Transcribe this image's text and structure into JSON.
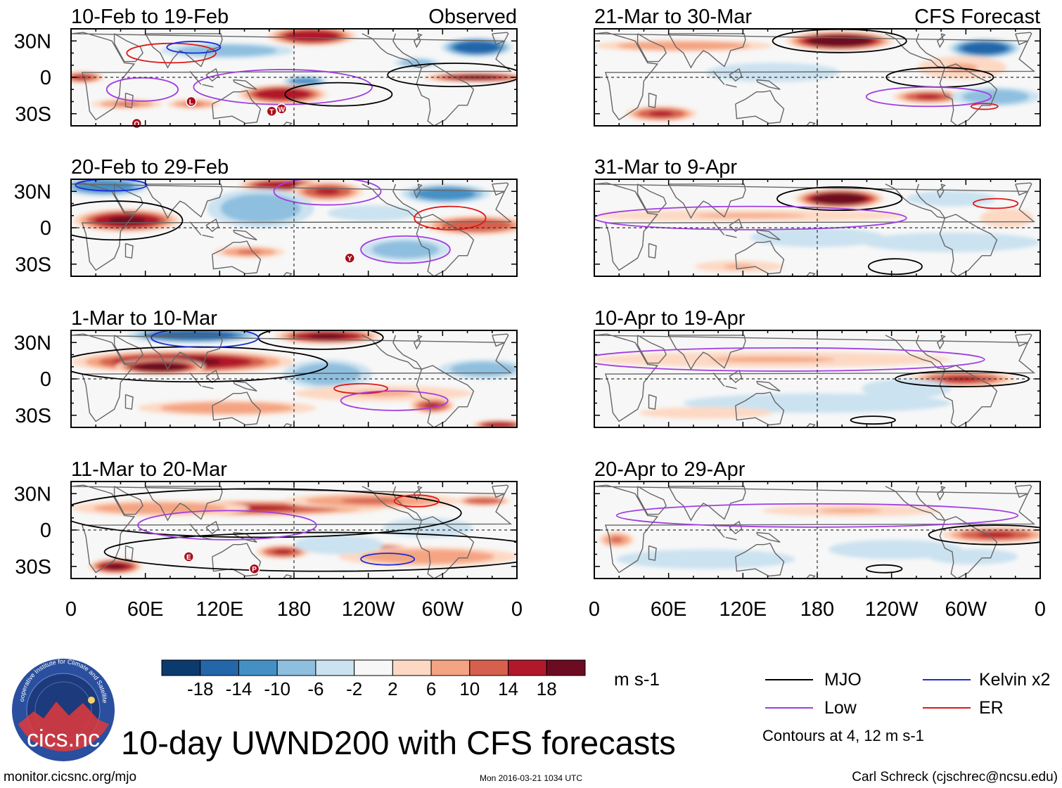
{
  "chart_data": {
    "type": "heatmap",
    "title": "10-day UWND200 with CFS forecasts",
    "units": "m s-1",
    "colors": {
      "levels": [
        -22,
        -18,
        -14,
        -10,
        -6,
        -2,
        2,
        6,
        10,
        14,
        18,
        22
      ],
      "fills": [
        "#0b3a6e",
        "#2466aa",
        "#4490c5",
        "#8ebfdf",
        "#cbe2f0",
        "#f7f7f7",
        "#fdd9c4",
        "#f4a482",
        "#d6604d",
        "#b2182b",
        "#6d0b22"
      ],
      "contours": {
        "mjo": "#000000",
        "low": "#a03ee0",
        "kelvin": "#1a2ed6",
        "er": "#e01818"
      },
      "land": "#666666"
    },
    "colorbar_ticks": [
      "-18",
      "-14",
      "-10",
      "-6",
      "-2",
      "2",
      "6",
      "10",
      "14",
      "18"
    ],
    "x_ticks": [
      "0",
      "60E",
      "120E",
      "180",
      "120W",
      "60W",
      "0"
    ],
    "y_ticks": [
      "30N",
      "0",
      "30S"
    ],
    "panels": [
      {
        "title": "10-Feb to 19-Feb",
        "label": "Observed",
        "column": "observed",
        "blobs": [
          [
            -0.95,
            0.0,
            0.05,
            0.06,
            15
          ],
          [
            0.82,
            0.0,
            0.12,
            0.05,
            18
          ],
          [
            -0.05,
            -0.35,
            0.1,
            0.1,
            16
          ],
          [
            0.08,
            0.85,
            0.1,
            0.1,
            16
          ],
          [
            0.82,
            0.62,
            0.08,
            0.1,
            -18
          ],
          [
            -0.3,
            0.55,
            0.15,
            0.08,
            -10
          ],
          [
            0.05,
            -0.08,
            0.05,
            0.05,
            -12
          ],
          [
            -0.75,
            -0.55,
            0.08,
            0.05,
            10
          ],
          [
            -0.45,
            -0.55,
            0.06,
            0.05,
            10
          ],
          [
            0.55,
            0.3,
            0.05,
            0.05,
            -10
          ]
        ],
        "contours": [
          {
            "kind": "mjo",
            "x": 0.72,
            "y": 0.05,
            "rx": 0.15,
            "ry": 0.12
          },
          {
            "kind": "low",
            "x": -0.05,
            "y": -0.2,
            "rx": 0.2,
            "ry": 0.18
          },
          {
            "kind": "mjo",
            "x": 0.2,
            "y": -0.35,
            "rx": 0.12,
            "ry": 0.12
          },
          {
            "kind": "er",
            "x": -0.55,
            "y": 0.5,
            "rx": 0.1,
            "ry": 0.1
          },
          {
            "kind": "kelvin",
            "x": -0.45,
            "y": 0.62,
            "rx": 0.06,
            "ry": 0.06
          },
          {
            "kind": "low",
            "x": -0.68,
            "y": -0.25,
            "rx": 0.08,
            "ry": 0.12
          }
        ],
        "markers": [
          {
            "x": 97,
            "y": -20,
            "letter": "L"
          },
          {
            "x": 53,
            "y": -38,
            "letter": "O"
          },
          {
            "x": 162,
            "y": -28,
            "letter": "T"
          },
          {
            "x": 170,
            "y": -26,
            "letter": "W"
          }
        ]
      },
      {
        "title": "20-Feb to 29-Feb",
        "label": "",
        "column": "observed",
        "blobs": [
          [
            -0.75,
            0.15,
            0.12,
            0.12,
            18
          ],
          [
            -0.05,
            0.88,
            0.1,
            0.07,
            16
          ],
          [
            0.15,
            0.75,
            0.08,
            0.1,
            14
          ],
          [
            0.82,
            0.05,
            0.12,
            0.1,
            12
          ],
          [
            0.5,
            -0.45,
            0.06,
            0.1,
            -18
          ],
          [
            0.5,
            -0.45,
            0.1,
            0.12,
            -10
          ],
          [
            -0.15,
            0.4,
            0.12,
            0.2,
            -10
          ],
          [
            0.68,
            0.7,
            0.1,
            0.1,
            -14
          ],
          [
            -0.85,
            0.85,
            0.1,
            0.1,
            -14
          ],
          [
            -0.2,
            -0.5,
            0.08,
            0.06,
            10
          ],
          [
            0.35,
            0.3,
            0.1,
            0.08,
            -6
          ]
        ],
        "contours": [
          {
            "kind": "mjo",
            "x": -0.8,
            "y": 0.15,
            "rx": 0.15,
            "ry": 0.2
          },
          {
            "kind": "low",
            "x": 0.5,
            "y": -0.45,
            "rx": 0.1,
            "ry": 0.14
          },
          {
            "kind": "er",
            "x": 0.7,
            "y": 0.2,
            "rx": 0.08,
            "ry": 0.12
          },
          {
            "kind": "kelvin",
            "x": -0.82,
            "y": 0.88,
            "rx": 0.08,
            "ry": 0.06
          },
          {
            "kind": "low",
            "x": 0.15,
            "y": 0.75,
            "rx": 0.12,
            "ry": 0.14
          }
        ],
        "markers": [
          {
            "x": -135,
            "y": -25,
            "letter": "Y"
          }
        ]
      },
      {
        "title": "1-Mar to 10-Mar",
        "label": "",
        "column": "observed",
        "blobs": [
          [
            -0.5,
            0.35,
            0.25,
            0.12,
            18
          ],
          [
            -0.6,
            0.25,
            0.1,
            0.08,
            22
          ],
          [
            0.15,
            0.88,
            0.12,
            0.08,
            18
          ],
          [
            0.15,
            0.1,
            0.1,
            0.15,
            -10
          ],
          [
            -0.45,
            0.9,
            0.15,
            0.08,
            -18
          ],
          [
            0.62,
            -0.55,
            0.05,
            0.08,
            14
          ],
          [
            0.92,
            -0.95,
            0.06,
            0.05,
            16
          ],
          [
            0.85,
            0.2,
            0.1,
            0.1,
            -8
          ],
          [
            -0.3,
            -0.6,
            0.2,
            0.08,
            8
          ],
          [
            0.4,
            -0.3,
            0.2,
            0.08,
            6
          ]
        ],
        "contours": [
          {
            "kind": "mjo",
            "x": -0.45,
            "y": 0.3,
            "rx": 0.3,
            "ry": 0.18
          },
          {
            "kind": "mjo",
            "x": 0.12,
            "y": 0.85,
            "rx": 0.14,
            "ry": 0.12
          },
          {
            "kind": "kelvin",
            "x": -0.4,
            "y": 0.85,
            "rx": 0.12,
            "ry": 0.1
          },
          {
            "kind": "er",
            "x": 0.3,
            "y": -0.2,
            "rx": 0.06,
            "ry": 0.05
          },
          {
            "kind": "low",
            "x": 0.45,
            "y": -0.45,
            "rx": 0.12,
            "ry": 0.1
          }
        ],
        "markers": []
      },
      {
        "title": "11-Mar to 20-Mar",
        "label": "",
        "column": "observed",
        "blobs": [
          [
            -0.2,
            0.45,
            0.3,
            0.08,
            14
          ],
          [
            0.35,
            0.6,
            0.2,
            0.08,
            10
          ],
          [
            -0.6,
            0.45,
            0.2,
            0.08,
            8
          ],
          [
            -0.8,
            -0.75,
            0.06,
            0.08,
            18
          ],
          [
            0.42,
            -0.45,
            0.06,
            0.08,
            16
          ],
          [
            -0.05,
            -0.45,
            0.06,
            0.07,
            14
          ],
          [
            0.6,
            -0.55,
            0.2,
            0.1,
            8
          ],
          [
            0.2,
            -0.3,
            0.1,
            0.1,
            -6
          ],
          [
            0.6,
            0.05,
            0.1,
            0.1,
            -6
          ],
          [
            0.85,
            0.6,
            0.06,
            0.05,
            12
          ]
        ],
        "contours": [
          {
            "kind": "mjo",
            "x": -0.15,
            "y": 0.35,
            "rx": 0.45,
            "ry": 0.25
          },
          {
            "kind": "mjo",
            "x": 0.15,
            "y": -0.45,
            "rx": 0.5,
            "ry": 0.2
          },
          {
            "kind": "low",
            "x": -0.3,
            "y": 0.1,
            "rx": 0.2,
            "ry": 0.15
          },
          {
            "kind": "kelvin",
            "x": 0.42,
            "y": -0.6,
            "rx": 0.06,
            "ry": 0.06
          },
          {
            "kind": "er",
            "x": 0.55,
            "y": 0.6,
            "rx": 0.05,
            "ry": 0.06
          }
        ],
        "markers": [
          {
            "x": 95,
            "y": -22,
            "letter": "E"
          },
          {
            "x": 148,
            "y": -32,
            "letter": "P"
          }
        ]
      },
      {
        "title": "21-Mar to 30-Mar",
        "label": "CFS Forecast",
        "column": "forecast",
        "blobs": [
          [
            0.1,
            0.75,
            0.12,
            0.1,
            20
          ],
          [
            0.75,
            0.6,
            0.08,
            0.1,
            -18
          ],
          [
            -0.7,
            -0.75,
            0.08,
            0.08,
            14
          ],
          [
            0.5,
            -0.4,
            0.08,
            0.07,
            14
          ],
          [
            -0.2,
            0.1,
            0.15,
            0.1,
            -6
          ],
          [
            0.8,
            -0.4,
            0.1,
            0.1,
            -8
          ],
          [
            -0.6,
            0.65,
            0.2,
            0.06,
            8
          ],
          [
            0.65,
            0.2,
            0.1,
            0.12,
            6
          ]
        ],
        "contours": [
          {
            "kind": "mjo",
            "x": 0.1,
            "y": 0.75,
            "rx": 0.15,
            "ry": 0.12
          },
          {
            "kind": "mjo",
            "x": 0.55,
            "y": 0.0,
            "rx": 0.12,
            "ry": 0.1
          },
          {
            "kind": "low",
            "x": 0.5,
            "y": -0.4,
            "rx": 0.14,
            "ry": 0.1
          },
          {
            "kind": "er",
            "x": 0.75,
            "y": -0.6,
            "rx": 0.03,
            "ry": 0.03
          }
        ],
        "markers": []
      },
      {
        "title": "31-Mar to 9-Apr",
        "label": "",
        "column": "forecast",
        "blobs": [
          [
            0.1,
            0.6,
            0.1,
            0.1,
            20
          ],
          [
            -0.3,
            0.25,
            0.35,
            0.06,
            6
          ],
          [
            0.0,
            -0.2,
            0.15,
            0.1,
            -6
          ],
          [
            0.6,
            -0.3,
            0.2,
            0.1,
            -4
          ],
          [
            0.6,
            0.6,
            0.1,
            0.08,
            -6
          ],
          [
            0.85,
            0.2,
            0.06,
            0.1,
            4
          ],
          [
            -0.35,
            -0.8,
            0.1,
            0.06,
            6
          ]
        ],
        "contours": [
          {
            "kind": "mjo",
            "x": 0.1,
            "y": 0.6,
            "rx": 0.14,
            "ry": 0.12
          },
          {
            "kind": "low",
            "x": -0.3,
            "y": 0.2,
            "rx": 0.35,
            "ry": 0.12
          },
          {
            "kind": "er",
            "x": 0.8,
            "y": 0.5,
            "rx": 0.05,
            "ry": 0.05
          },
          {
            "kind": "mjo",
            "x": 0.35,
            "y": -0.8,
            "rx": 0.06,
            "ry": 0.08
          }
        ],
        "markers": []
      },
      {
        "title": "10-Apr to 19-Apr",
        "label": "",
        "column": "forecast",
        "blobs": [
          [
            0.65,
            0.0,
            0.12,
            0.08,
            14
          ],
          [
            -0.2,
            0.4,
            0.4,
            0.08,
            6
          ],
          [
            0.0,
            -0.5,
            0.3,
            0.1,
            -4
          ],
          [
            0.4,
            -0.2,
            0.1,
            0.1,
            -6
          ],
          [
            -0.5,
            -0.7,
            0.15,
            0.06,
            4
          ]
        ],
        "contours": [
          {
            "kind": "mjo",
            "x": 0.65,
            "y": 0.0,
            "rx": 0.15,
            "ry": 0.08
          },
          {
            "kind": "low",
            "x": -0.15,
            "y": 0.4,
            "rx": 0.45,
            "ry": 0.12
          },
          {
            "kind": "mjo",
            "x": 0.25,
            "y": -0.85,
            "rx": 0.05,
            "ry": 0.04
          }
        ],
        "markers": []
      },
      {
        "title": "20-Apr to 29-Apr",
        "label": "",
        "column": "forecast",
        "blobs": [
          [
            0.8,
            -0.1,
            0.12,
            0.08,
            14
          ],
          [
            -0.9,
            -0.2,
            0.04,
            0.08,
            10
          ],
          [
            0.15,
            0.4,
            0.2,
            0.06,
            6
          ],
          [
            0.35,
            -0.4,
            0.15,
            0.1,
            -6
          ],
          [
            0.7,
            -0.55,
            0.1,
            0.08,
            -6
          ],
          [
            -0.5,
            -0.6,
            0.2,
            0.1,
            -4
          ]
        ],
        "contours": [
          {
            "kind": "mjo",
            "x": 0.8,
            "y": -0.1,
            "rx": 0.15,
            "ry": 0.1
          },
          {
            "kind": "low",
            "x": 0.0,
            "y": 0.3,
            "rx": 0.45,
            "ry": 0.12
          },
          {
            "kind": "mjo",
            "x": 0.3,
            "y": -0.8,
            "rx": 0.04,
            "ry": 0.04
          }
        ],
        "markers": []
      }
    ]
  },
  "legend": {
    "items": [
      {
        "label": "MJO",
        "kind": "mjo"
      },
      {
        "label": "Kelvin x2",
        "kind": "kelvin"
      },
      {
        "label": "Low",
        "kind": "low"
      },
      {
        "label": "ER",
        "kind": "er"
      }
    ],
    "note": "Contours at 4, 12 m s-1"
  },
  "logo": {
    "text": "cics.nc",
    "ring_text": "Cooperative Institute for Climate and Satellites"
  },
  "footer": {
    "site": "monitor.cicsnc.org/mjo",
    "timestamp": "Mon 2016-03-21 1034 UTC",
    "credit": "Carl Schreck (cjschrec@ncsu.edu)"
  }
}
